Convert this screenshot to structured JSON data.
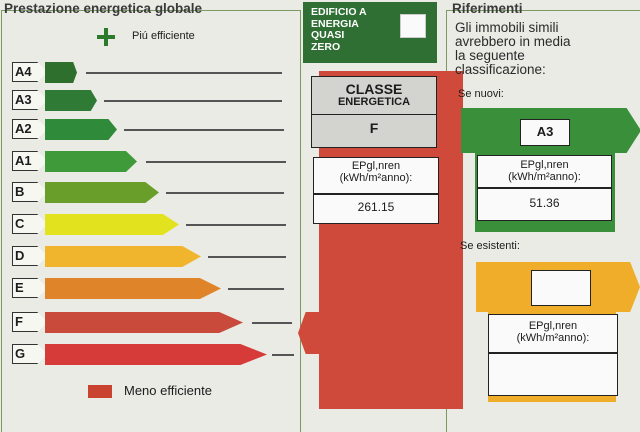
{
  "left_panel": {
    "title": "Prestazione energetica globale",
    "more_efficient": "Piú efficiente",
    "less_efficient": "Meno efficiente",
    "classes": [
      {
        "label": "A4",
        "color": "#2e6f2e"
      },
      {
        "label": "A3",
        "color": "#2f7a35"
      },
      {
        "label": "A2",
        "color": "#2f8a3a"
      },
      {
        "label": "A1",
        "color": "#3f9a3a"
      },
      {
        "label": "B",
        "color": "#6a9e2a"
      },
      {
        "label": "C",
        "color": "#e3e21e"
      },
      {
        "label": "D",
        "color": "#f0b52d"
      },
      {
        "label": "E",
        "color": "#e0842a"
      },
      {
        "label": "F",
        "color": "#c9493a"
      },
      {
        "label": "G",
        "color": "#d63b3a"
      }
    ]
  },
  "nzeb": {
    "label": "EDIFICIO A\nENERGIA\nQUASI\nZERO"
  },
  "energy_class": {
    "heading_1": "CLASSE",
    "heading_2": "ENERGETICA",
    "value": "F",
    "ep_label": "EPgl,nren\n(kWh/m²anno):",
    "ep_value": "261.15"
  },
  "references": {
    "title": "Riferimenti",
    "text": "Gli immobili simili\navrebbero in media\nla seguente\nclassificazione:",
    "new_label": "Se nuovi:",
    "new_class": "A3",
    "new_ep_label": "EPgl,nren\n(kWh/m²anno):",
    "new_ep_value": "51.36",
    "existing_label": "Se esistenti:",
    "existing_ep_label": "EPgl,nren\n(kWh/m²anno):"
  },
  "colors": {
    "accent_red": "#d04a3c",
    "nzeb_green": "#2f6f34",
    "new_green": "#3a8f3a",
    "existing_yellow": "#f0ad2a"
  }
}
